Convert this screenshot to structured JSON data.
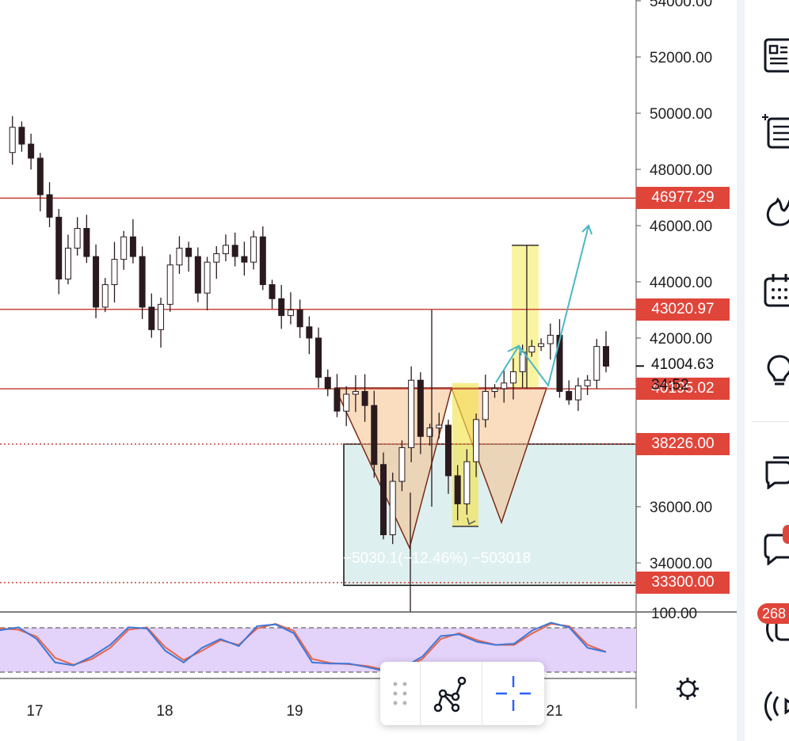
{
  "chart_data": {
    "type": "candlestick",
    "y_axis": {
      "range": [
        32800,
        54000
      ],
      "ticks": [
        "54000.00",
        "52000.00",
        "50000.00",
        "48000.00",
        "46000.00",
        "44000.00",
        "42000.00",
        "36000.00",
        "34000.00"
      ]
    },
    "x_axis": {
      "tick_labels": [
        "17",
        "18",
        "19",
        "21"
      ]
    },
    "price_labels": [
      {
        "value": 46977.29,
        "text": "46977.29"
      },
      {
        "value": 43020.97,
        "text": "43020.97"
      },
      {
        "value": 40195.02,
        "text": "40195.02"
      },
      {
        "value": 38226.0,
        "text": "38226.00"
      },
      {
        "value": 33300.0,
        "text": "33300.00"
      }
    ],
    "current_price": {
      "value": 41004.63,
      "text": "41004.63",
      "countdown": "34:52"
    },
    "horizontal_lines": [
      46977.29,
      43020.97,
      40195.02
    ],
    "dotted_lines": [
      38226.0,
      33300.0
    ],
    "measurement_label": "−5030.1(−12.46%) −503018",
    "measurement_box": {
      "price_range": [
        33200,
        38226
      ]
    },
    "projection_bars": [
      {
        "price_range": [
          40250,
          45300
        ]
      },
      {
        "price_range": [
          35300,
          40400
        ]
      }
    ],
    "candles_close_path": [
      48600,
      49500,
      48900,
      48400,
      47100,
      46300,
      44100,
      45200,
      45900,
      44900,
      43100,
      43900,
      44800,
      45600,
      44900,
      43100,
      42300,
      43200,
      44600,
      45200,
      44900,
      43600,
      44700,
      45000,
      45300,
      44900,
      44700,
      45600,
      43900,
      43400,
      42800,
      43000,
      42400,
      42000,
      40600,
      40200,
      39400,
      40000,
      40100,
      39600,
      37500,
      35000,
      36900,
      38100,
      40500,
      38500,
      38800,
      38900,
      37100,
      36100,
      37600,
      39100,
      40100,
      40200,
      40400,
      40800,
      41500,
      41700,
      41800,
      42100,
      40100,
      39800,
      40300,
      40500,
      41700,
      41000
    ],
    "oscillator": {
      "level_labels": [
        "100.00"
      ],
      "k_series": [
        85,
        90,
        70,
        30,
        25,
        40,
        60,
        90,
        88,
        50,
        30,
        55,
        70,
        58,
        92,
        95,
        80,
        30,
        28,
        28,
        22,
        15,
        22,
        40,
        75,
        78,
        65,
        60,
        62,
        85,
        98,
        90,
        55,
        48
      ],
      "d_series": [
        88,
        86,
        74,
        38,
        26,
        36,
        55,
        86,
        90,
        56,
        34,
        50,
        68,
        60,
        88,
        96,
        84,
        36,
        29,
        27,
        24,
        17,
        20,
        36,
        70,
        80,
        68,
        60,
        60,
        80,
        96,
        92,
        60,
        48
      ]
    }
  },
  "floating_toolbar": {
    "tools": [
      "drag-handle",
      "pattern-tool",
      "crosshair-tool"
    ]
  },
  "sidebar": {
    "badge_count": "268"
  }
}
